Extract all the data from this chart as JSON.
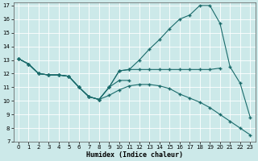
{
  "xlabel": "Humidex (Indice chaleur)",
  "xlim": [
    -0.5,
    23.5
  ],
  "ylim": [
    7,
    17.2
  ],
  "yticks": [
    7,
    8,
    9,
    10,
    11,
    12,
    13,
    14,
    15,
    16,
    17
  ],
  "xticks": [
    0,
    1,
    2,
    3,
    4,
    5,
    6,
    7,
    8,
    9,
    10,
    11,
    12,
    13,
    14,
    15,
    16,
    17,
    18,
    19,
    20,
    21,
    22,
    23
  ],
  "background_color": "#cce9e9",
  "line_color": "#1a6b6b",
  "grid_color": "#ffffff",
  "lines": [
    {
      "x": [
        0,
        1,
        2,
        3,
        4,
        5,
        6,
        7,
        8,
        9,
        10,
        11,
        12,
        13,
        14,
        15,
        16,
        17,
        18,
        19,
        20,
        21,
        22,
        23
      ],
      "y": [
        13.1,
        12.7,
        12.0,
        11.9,
        11.9,
        11.8,
        11.0,
        10.3,
        10.1,
        11.0,
        12.2,
        12.3,
        13.0,
        13.8,
        14.5,
        15.3,
        16.0,
        16.3,
        17.0,
        17.0,
        15.7,
        12.5,
        11.3,
        8.8
      ]
    },
    {
      "x": [
        0,
        1,
        2,
        3,
        4,
        5,
        6,
        7,
        8,
        9,
        10,
        11,
        12,
        13,
        14,
        15,
        16,
        17,
        18,
        19,
        20
      ],
      "y": [
        13.1,
        12.7,
        12.0,
        11.9,
        11.9,
        11.8,
        11.0,
        10.3,
        10.1,
        11.0,
        12.2,
        12.3,
        12.3,
        12.3,
        12.3,
        12.3,
        12.3,
        12.3,
        12.3,
        12.3,
        12.4
      ]
    },
    {
      "x": [
        0,
        1,
        2,
        3,
        4,
        5,
        6,
        7,
        8,
        9,
        10,
        11,
        12,
        13,
        14,
        15,
        16,
        17,
        18,
        19,
        20,
        21,
        22,
        23
      ],
      "y": [
        13.1,
        12.7,
        12.0,
        11.9,
        11.9,
        11.8,
        11.0,
        10.3,
        10.1,
        10.4,
        10.8,
        11.1,
        11.2,
        11.2,
        11.1,
        10.9,
        10.5,
        10.2,
        9.9,
        9.5,
        9.0,
        8.5,
        8.0,
        7.5
      ]
    },
    {
      "x": [
        0,
        1,
        2,
        3,
        4,
        5,
        6,
        7,
        8,
        9,
        10,
        11
      ],
      "y": [
        13.1,
        12.7,
        12.0,
        11.9,
        11.9,
        11.8,
        11.0,
        10.3,
        10.1,
        11.0,
        11.5,
        11.5
      ]
    }
  ]
}
